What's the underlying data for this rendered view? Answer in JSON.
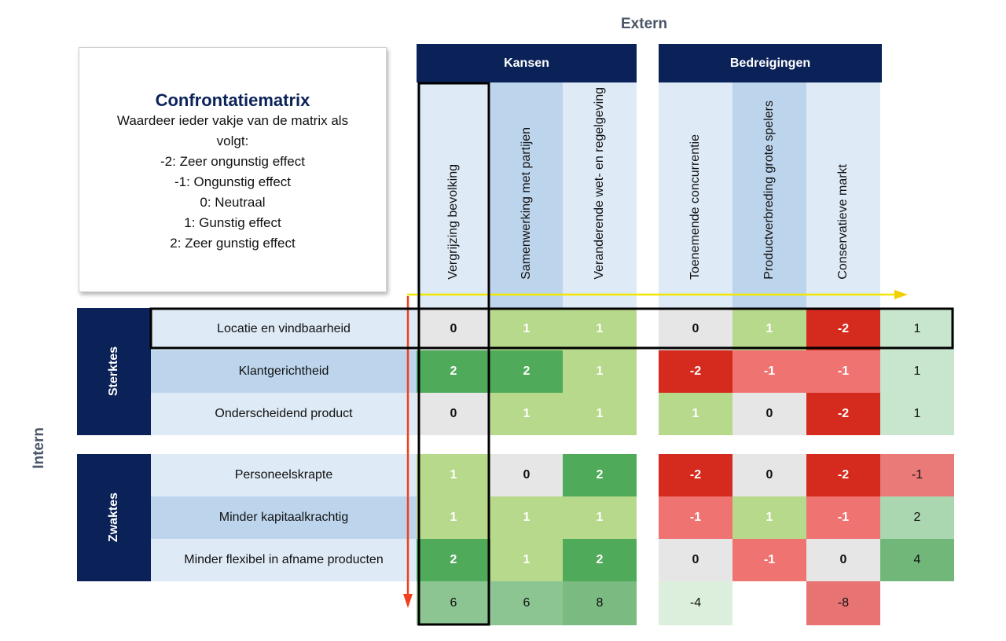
{
  "labels": {
    "extern": "Extern",
    "intern": "Intern",
    "kansen": "Kansen",
    "bedreigingen": "Bedreigingen",
    "sterktes": "Sterktes",
    "zwaktes": "Zwaktes"
  },
  "info": {
    "title": "Confrontatiematrix",
    "lines": [
      "Waardeer ieder vakje van de matrix als",
      "volgt:",
      "-2:  Zeer ongunstig effect",
      "-1:  Ongunstig effect",
      "0: Neutraal",
      "1: Gunstig effect",
      "2:  Zeer gunstig effect"
    ]
  },
  "columns": [
    "Vergrijzing bevolking",
    "Samenwerking met partijen",
    "Veranderende wet- en regelgeving",
    "Toenemende concurrentie",
    "Productverbreding grote spelers",
    "Conservatieve markt"
  ],
  "rows": [
    {
      "label": "Locatie en vindbaarheid",
      "values": [
        0,
        1,
        1,
        0,
        1,
        -2
      ],
      "total": "1"
    },
    {
      "label": "Klantgerichtheid",
      "values": [
        2,
        2,
        1,
        -2,
        -1,
        -1
      ],
      "total": "1"
    },
    {
      "label": "Onderscheidend product",
      "values": [
        0,
        1,
        1,
        1,
        0,
        -2
      ],
      "total": "1"
    },
    {
      "label": "Personeelskrapte",
      "values": [
        1,
        0,
        2,
        -2,
        0,
        -2
      ],
      "total": "-1"
    },
    {
      "label": "Minder kapitaalkrachtig",
      "values": [
        1,
        1,
        1,
        -1,
        1,
        -1
      ],
      "total": "2"
    },
    {
      "label": "Minder flexibel in afname producten",
      "values": [
        2,
        1,
        2,
        0,
        -1,
        0
      ],
      "total": "4"
    }
  ],
  "column_totals": [
    "6",
    "6",
    "8",
    "-4",
    "",
    "-8"
  ],
  "colors": {
    "navy": "#0b2259",
    "score_2": "#4faa5a",
    "score_1": "#b7d98b",
    "score_0": "#e6e6e6",
    "score_-1": "#ef7471",
    "score_-2": "#d52b1e",
    "highlight_row_arrow": "#f2e600",
    "highlight_col_arrow": "#f0401e"
  }
}
